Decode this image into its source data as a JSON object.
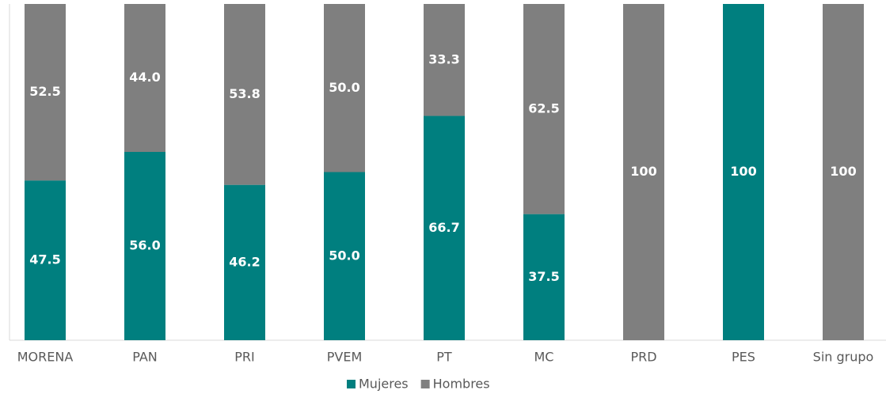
{
  "chart_data": {
    "type": "bar",
    "stacked": true,
    "categories": [
      "MORENA",
      "PAN",
      "PRI",
      "PVEM",
      "PT",
      "MC",
      "PRD",
      "PES",
      "Sin grupo"
    ],
    "series": [
      {
        "name": "Mujeres",
        "color": "#007f7f",
        "values": [
          47.5,
          56.0,
          46.2,
          50.0,
          66.7,
          37.5,
          0,
          100,
          0
        ],
        "value_labels": [
          "47.5",
          "56.0",
          "46.2",
          "50.0",
          "66.7",
          "37.5",
          null,
          "100",
          null
        ]
      },
      {
        "name": "Hombres",
        "color": "#7f7f7f",
        "values": [
          52.5,
          44.0,
          53.8,
          50.0,
          33.3,
          62.5,
          100,
          0,
          100
        ],
        "value_labels": [
          "52.5",
          "44.0",
          "53.8",
          "50.0",
          "33.3",
          "62.5",
          "100",
          null,
          "100"
        ]
      }
    ],
    "ylim": [
      0,
      100
    ],
    "legend": "bottom"
  }
}
